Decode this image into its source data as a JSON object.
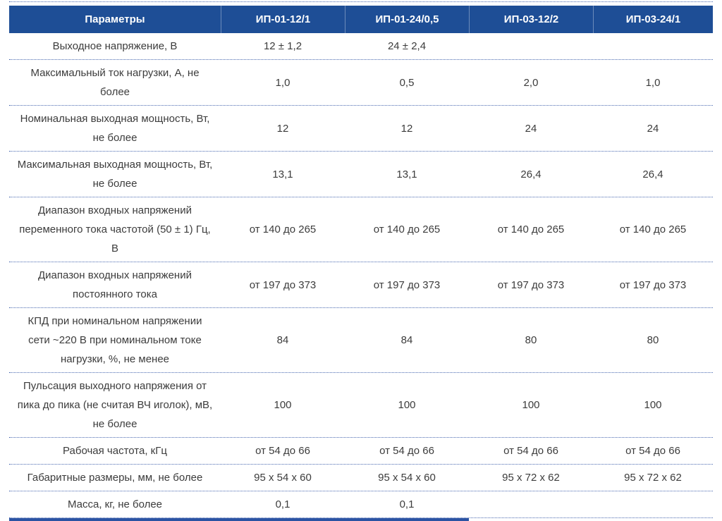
{
  "table": {
    "columns": [
      "Параметры",
      "ИП-01-12/1",
      "ИП-01-24/0,5",
      "ИП-03-12/2",
      "ИП-03-24/1"
    ],
    "rows": [
      {
        "param": "Выходное напряжение, В",
        "values": [
          "12 ± 1,2",
          "24 ± 2,4",
          "",
          ""
        ]
      },
      {
        "param": "Максимальный ток нагрузки, А, не более",
        "values": [
          "1,0",
          "0,5",
          "2,0",
          "1,0"
        ]
      },
      {
        "param": "Номинальная выходная мощность, Вт, не более",
        "values": [
          "12",
          "12",
          "24",
          "24"
        ]
      },
      {
        "param": "Максимальная выходная мощность, Вт, не более",
        "values": [
          "13,1",
          "13,1",
          "26,4",
          "26,4"
        ]
      },
      {
        "param": "Диапазон входных напряжений переменного тока частотой (50 ± 1) Гц, В",
        "values": [
          "от 140 до 265",
          "от 140 до 265",
          "от 140 до 265",
          "от 140 до 265"
        ]
      },
      {
        "param": "Диапазон входных напряжений постоянного тока",
        "values": [
          "от 197 до 373",
          "от 197 до 373",
          "от 197 до 373",
          "от 197 до 373"
        ]
      },
      {
        "param": "КПД при номинальном напряжении сети ~220 В при номинальном токе нагрузки, %, не менее",
        "values": [
          "84",
          "84",
          "80",
          "80"
        ]
      },
      {
        "param": "Пульсация выходного напряжения от пика до пика (не считая ВЧ иголок), мВ, не более",
        "values": [
          "100",
          "100",
          "100",
          "100"
        ]
      },
      {
        "param": "Рабочая частота, кГц",
        "values": [
          "от 54 до 66",
          "от 54 до 66",
          "от 54 до 66",
          "от 54 до 66"
        ]
      },
      {
        "param": "Габаритные размеры, мм, не более",
        "values": [
          "95 x 54 x 60",
          "95 x 54 x 60",
          "95 x 72 x 62",
          "95 x 72 x 62"
        ]
      },
      {
        "param": "Масса, кг, не более",
        "values": [
          "0,1",
          "0,1",
          "",
          ""
        ]
      }
    ],
    "colors": {
      "header_bg": "#1e4e96",
      "divider": "#4a69b0",
      "underline": "#2b53a3",
      "text": "#3c3c3c"
    }
  }
}
